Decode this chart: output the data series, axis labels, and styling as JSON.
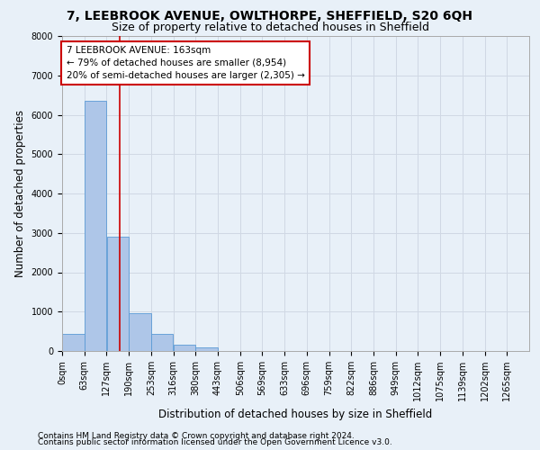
{
  "title": "7, LEEBROOK AVENUE, OWLTHORPE, SHEFFIELD, S20 6QH",
  "subtitle": "Size of property relative to detached houses in Sheffield",
  "xlabel": "Distribution of detached houses by size in Sheffield",
  "ylabel": "Number of detached properties",
  "footer_line1": "Contains HM Land Registry data © Crown copyright and database right 2024.",
  "footer_line2": "Contains public sector information licensed under the Open Government Licence v3.0.",
  "bin_labels": [
    "0sqm",
    "63sqm",
    "127sqm",
    "190sqm",
    "253sqm",
    "316sqm",
    "380sqm",
    "443sqm",
    "506sqm",
    "569sqm",
    "633sqm",
    "696sqm",
    "759sqm",
    "822sqm",
    "886sqm",
    "949sqm",
    "1012sqm",
    "1075sqm",
    "1139sqm",
    "1202sqm",
    "1265sqm"
  ],
  "bar_values": [
    430,
    6350,
    2900,
    960,
    430,
    160,
    100,
    0,
    0,
    0,
    0,
    0,
    0,
    0,
    0,
    0,
    0,
    0,
    0,
    0
  ],
  "bar_color": "#aec6e8",
  "bar_edge_color": "#5a9ad5",
  "grid_color": "#d0d8e4",
  "bg_color": "#e8f0f8",
  "vline_color": "#cc0000",
  "annotation_text": "7 LEEBROOK AVENUE: 163sqm\n← 79% of detached houses are smaller (8,954)\n20% of semi-detached houses are larger (2,305) →",
  "annotation_box_color": "white",
  "annotation_border_color": "#cc0000",
  "ylim": [
    0,
    8000
  ],
  "yticks": [
    0,
    1000,
    2000,
    3000,
    4000,
    5000,
    6000,
    7000,
    8000
  ],
  "bin_width": 63,
  "property_size": 163,
  "title_fontsize": 10,
  "subtitle_fontsize": 9,
  "axis_label_fontsize": 8.5,
  "tick_fontsize": 7,
  "annotation_fontsize": 7.5,
  "footer_fontsize": 6.5
}
